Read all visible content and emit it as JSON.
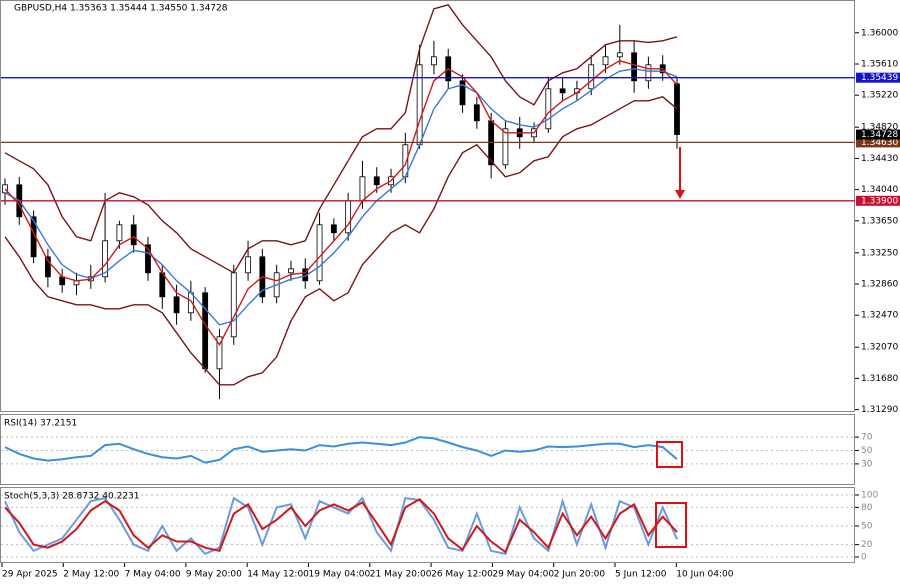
{
  "chart_data": [
    {
      "type": "candlestick",
      "title": "GBPUSD,H4  1.35363 1.35444 1.34550 1.34728",
      "open": [
        1.34,
        1.341,
        1.337,
        1.332,
        1.3295,
        1.3285,
        1.329,
        1.3295,
        1.334,
        1.336,
        1.3335,
        1.33,
        1.327,
        1.325,
        1.3275,
        1.318,
        1.322,
        1.33,
        1.332,
        1.327,
        1.33,
        1.3305,
        1.329,
        1.336,
        1.335,
        1.339,
        1.342,
        1.341,
        1.342,
        1.346,
        1.356,
        1.357,
        1.354,
        1.351,
        1.349,
        1.3435,
        1.348,
        1.347,
        1.348,
        1.353,
        1.3525,
        1.353,
        1.356,
        1.357,
        1.3575,
        1.354,
        1.356,
        1.35363
      ],
      "high": [
        1.3418,
        1.342,
        1.3378,
        1.333,
        1.3305,
        1.33,
        1.331,
        1.34,
        1.3365,
        1.3372,
        1.3345,
        1.331,
        1.3285,
        1.329,
        1.3282,
        1.323,
        1.331,
        1.334,
        1.333,
        1.331,
        1.3315,
        1.3318,
        1.3375,
        1.3368,
        1.34,
        1.344,
        1.3432,
        1.343,
        1.3475,
        1.3585,
        1.359,
        1.358,
        1.3548,
        1.352,
        1.35,
        1.349,
        1.3495,
        1.3488,
        1.3545,
        1.3545,
        1.354,
        1.3572,
        1.3585,
        1.361,
        1.359,
        1.357,
        1.3572,
        1.35444
      ],
      "low": [
        1.3385,
        1.336,
        1.3312,
        1.3282,
        1.3275,
        1.3272,
        1.328,
        1.3288,
        1.333,
        1.3325,
        1.329,
        1.3255,
        1.3235,
        1.324,
        1.3175,
        1.3142,
        1.321,
        1.329,
        1.3262,
        1.3262,
        1.329,
        1.328,
        1.3285,
        1.334,
        1.334,
        1.338,
        1.34,
        1.34,
        1.3412,
        1.3455,
        1.3548,
        1.353,
        1.35,
        1.348,
        1.3418,
        1.343,
        1.3455,
        1.3462,
        1.3475,
        1.3515,
        1.3515,
        1.3522,
        1.355,
        1.356,
        1.3525,
        1.353,
        1.354,
        1.3455
      ],
      "close": [
        1.341,
        1.337,
        1.332,
        1.3295,
        1.3285,
        1.329,
        1.3295,
        1.334,
        1.336,
        1.3335,
        1.33,
        1.327,
        1.325,
        1.3275,
        1.318,
        1.322,
        1.33,
        1.332,
        1.327,
        1.33,
        1.3305,
        1.329,
        1.336,
        1.335,
        1.339,
        1.342,
        1.341,
        1.342,
        1.346,
        1.356,
        1.357,
        1.354,
        1.351,
        1.349,
        1.3435,
        1.348,
        1.347,
        1.348,
        1.353,
        1.3525,
        1.353,
        1.356,
        1.357,
        1.3575,
        1.354,
        1.356,
        1.355,
        1.34728
      ],
      "series": [
        {
          "color": "#7a1414",
          "values": [
            1.345,
            1.344,
            1.343,
            1.341,
            1.337,
            1.3345,
            1.334,
            1.339,
            1.34,
            1.3395,
            1.3385,
            1.3365,
            1.335,
            1.333,
            1.332,
            1.331,
            1.33,
            1.333,
            1.334,
            1.334,
            1.3335,
            1.334,
            1.338,
            1.341,
            1.344,
            1.347,
            1.348,
            1.348,
            1.35,
            1.358,
            1.363,
            1.3635,
            1.361,
            1.359,
            1.357,
            1.354,
            1.352,
            1.351,
            1.354,
            1.355,
            1.3555,
            1.357,
            1.3585,
            1.359,
            1.359,
            1.3588,
            1.359,
            1.3595
          ]
        },
        {
          "color": "#7a1414",
          "values": [
            1.3345,
            1.332,
            1.329,
            1.327,
            1.3265,
            1.326,
            1.326,
            1.3255,
            1.3255,
            1.326,
            1.326,
            1.325,
            1.3225,
            1.32,
            1.318,
            1.316,
            1.316,
            1.317,
            1.3175,
            1.3195,
            1.324,
            1.327,
            1.328,
            1.3265,
            1.3275,
            1.331,
            1.333,
            1.335,
            1.336,
            1.335,
            1.338,
            1.342,
            1.345,
            1.346,
            1.344,
            1.342,
            1.3425,
            1.344,
            1.3445,
            1.347,
            1.348,
            1.3485,
            1.3495,
            1.3505,
            1.3515,
            1.3515,
            1.352,
            1.3505
          ]
        },
        {
          "color": "#3a78d8",
          "values": [
            1.34,
            1.339,
            1.3365,
            1.3335,
            1.331,
            1.3298,
            1.3293,
            1.33,
            1.3315,
            1.3328,
            1.3325,
            1.331,
            1.329,
            1.3275,
            1.3255,
            1.3235,
            1.324,
            1.326,
            1.3278,
            1.3285,
            1.3292,
            1.3296,
            1.3308,
            1.3325,
            1.3345,
            1.337,
            1.339,
            1.3405,
            1.342,
            1.346,
            1.3505,
            1.353,
            1.3535,
            1.3525,
            1.3505,
            1.349,
            1.3485,
            1.3482,
            1.3492,
            1.3505,
            1.3515,
            1.3528,
            1.3542,
            1.3552,
            1.3555,
            1.3552,
            1.3552,
            1.3545
          ]
        },
        {
          "color": "#d01818",
          "values": [
            1.3405,
            1.3385,
            1.335,
            1.3315,
            1.3295,
            1.329,
            1.3292,
            1.331,
            1.3335,
            1.3345,
            1.333,
            1.33,
            1.3275,
            1.3265,
            1.3235,
            1.321,
            1.3245,
            1.328,
            1.3295,
            1.329,
            1.3298,
            1.33,
            1.332,
            1.334,
            1.336,
            1.339,
            1.3405,
            1.3415,
            1.3435,
            1.349,
            1.354,
            1.3555,
            1.3545,
            1.3525,
            1.349,
            1.3475,
            1.3475,
            1.3475,
            1.35,
            1.3515,
            1.3525,
            1.354,
            1.3555,
            1.3565,
            1.356,
            1.3555,
            1.3555,
            1.3535
          ]
        }
      ],
      "ylim": [
        1.3126,
        1.3641
      ],
      "yticks": [
        {
          "value": 1.36,
          "label": "1.36000"
        },
        {
          "value": 1.3561,
          "label": "1.35610"
        },
        {
          "value": 1.3522,
          "label": "1.35220"
        },
        {
          "value": 1.3482,
          "label": "1.34820"
        },
        {
          "value": 1.3443,
          "label": "1.34430"
        },
        {
          "value": 1.3404,
          "label": "1.34040"
        },
        {
          "value": 1.3365,
          "label": "1.33650"
        },
        {
          "value": 1.3325,
          "label": "1.33250"
        },
        {
          "value": 1.3286,
          "label": "1.32860"
        },
        {
          "value": 1.3247,
          "label": "1.32470"
        },
        {
          "value": 1.3207,
          "label": "1.32070"
        },
        {
          "value": 1.3168,
          "label": "1.31680"
        },
        {
          "value": 1.3129,
          "label": "1.31290"
        }
      ],
      "levels": [
        {
          "value": 1.35439,
          "label": "1.35439",
          "color": "#1414c8"
        },
        {
          "value": 1.3463,
          "label": "1.34630",
          "color": "#7a3a1a"
        },
        {
          "value": 1.339,
          "label": "1.33900",
          "color": "#c8102e"
        }
      ],
      "last": {
        "value": 1.34728,
        "label": "1.34728"
      },
      "xlabels": [
        "29 Apr 2025",
        "2 May 12:00",
        "7 May 04:00",
        "9 May 20:00",
        "14 May 12:00",
        "19 May 04:00",
        "21 May 20:00",
        "26 May 12:00",
        "29 May 04:00",
        "2 Jun 20:00",
        "5 Jun 12:00",
        "10 Jun 04:00"
      ]
    },
    {
      "type": "line",
      "title": "RSI(14) 37.2151",
      "series": [
        {
          "color": "#3a8fe0",
          "values": [
            55,
            45,
            38,
            35,
            37,
            40,
            42,
            58,
            60,
            52,
            45,
            40,
            38,
            42,
            32,
            36,
            52,
            56,
            48,
            50,
            52,
            50,
            58,
            56,
            60,
            62,
            60,
            58,
            62,
            70,
            68,
            62,
            55,
            50,
            42,
            50,
            48,
            50,
            56,
            55,
            56,
            58,
            60,
            60,
            55,
            58,
            55,
            37.2151
          ]
        }
      ],
      "ylim": [
        0,
        100
      ],
      "yticks": [
        30,
        50,
        70
      ]
    },
    {
      "type": "line",
      "title": "Stoch(5,3,3) 28.8732 40.2231",
      "series": [
        {
          "color": "#6a9ae0",
          "values": [
            90,
            40,
            10,
            20,
            30,
            60,
            90,
            95,
            60,
            20,
            10,
            50,
            10,
            30,
            5,
            15,
            95,
            80,
            20,
            80,
            85,
            30,
            90,
            80,
            70,
            95,
            40,
            10,
            95,
            92,
            60,
            15,
            10,
            70,
            10,
            5,
            80,
            30,
            10,
            90,
            20,
            85,
            15,
            90,
            80,
            20,
            80,
            28.8732
          ]
        },
        {
          "color": "#d01818",
          "values": [
            80,
            55,
            20,
            15,
            25,
            45,
            75,
            90,
            75,
            35,
            15,
            35,
            25,
            25,
            15,
            10,
            70,
            85,
            45,
            60,
            80,
            50,
            75,
            85,
            75,
            88,
            55,
            20,
            80,
            93,
            70,
            30,
            12,
            50,
            25,
            8,
            60,
            40,
            15,
            70,
            35,
            65,
            30,
            70,
            85,
            35,
            65,
            40.2231
          ]
        }
      ],
      "ylim": [
        0,
        100
      ],
      "yticks": [
        0,
        20,
        50,
        80,
        100
      ]
    }
  ]
}
